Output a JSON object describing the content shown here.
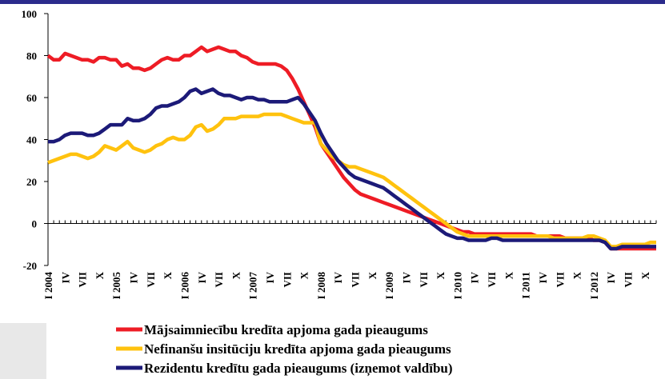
{
  "chart_data": {
    "type": "line",
    "categories": [
      "I 2004",
      null,
      null,
      "IV",
      null,
      null,
      "VII",
      null,
      null,
      "X",
      null,
      null,
      "I 2005",
      null,
      null,
      "IV",
      null,
      null,
      "VII",
      null,
      null,
      "X",
      null,
      null,
      "I 2006",
      null,
      null,
      "IV",
      null,
      null,
      "VII",
      null,
      null,
      "X",
      null,
      null,
      "I 2007",
      null,
      null,
      "IV",
      null,
      null,
      "VII",
      null,
      null,
      "X",
      null,
      null,
      "I 2008",
      null,
      null,
      "IV",
      null,
      null,
      "VII",
      null,
      null,
      "X",
      null,
      null,
      "I 2009",
      null,
      null,
      "IV",
      null,
      null,
      "VII",
      null,
      null,
      "X",
      null,
      null,
      "I 2010",
      null,
      null,
      "IV",
      null,
      null,
      "VII",
      null,
      null,
      "X",
      null,
      null,
      "I 2011",
      null,
      null,
      "IV",
      null,
      null,
      "VII",
      null,
      null,
      "X",
      null,
      null,
      "I 2012",
      null,
      null,
      "IV",
      null,
      null,
      "VII",
      null,
      null,
      "X",
      null,
      null
    ],
    "series": [
      {
        "name": "Mājsaimniecību kredīta apjoma gada pieaugums",
        "color": "#ee1c25",
        "values": [
          80,
          78,
          78,
          81,
          80,
          79,
          78,
          78,
          77,
          79,
          79,
          78,
          78,
          75,
          76,
          74,
          74,
          73,
          74,
          76,
          78,
          79,
          78,
          78,
          80,
          80,
          82,
          84,
          82,
          83,
          84,
          83,
          82,
          82,
          80,
          79,
          77,
          76,
          76,
          76,
          76,
          75,
          73,
          69,
          64,
          58,
          52,
          46,
          38,
          34,
          30,
          26,
          22,
          19,
          16,
          14,
          13,
          12,
          11,
          10,
          9,
          8,
          7,
          6,
          5,
          4,
          3,
          2,
          1,
          0,
          -1,
          -2,
          -3,
          -4,
          -4,
          -5,
          -5,
          -5,
          -5,
          -5,
          -5,
          -5,
          -5,
          -5,
          -5,
          -5,
          -6,
          -6,
          -6,
          -6,
          -6,
          -7,
          -7,
          -7,
          -7,
          -7,
          -8,
          -8,
          -9,
          -12,
          -12,
          -12,
          -12,
          -12,
          -12,
          -12,
          -12,
          -12
        ]
      },
      {
        "name": "Nefinanšu insitūciju kredīta apjoma gada pieaugums",
        "color": "#ffc20e",
        "values": [
          29,
          30,
          31,
          32,
          33,
          33,
          32,
          31,
          32,
          34,
          37,
          36,
          35,
          37,
          39,
          36,
          35,
          34,
          35,
          37,
          38,
          40,
          41,
          40,
          40,
          42,
          46,
          47,
          44,
          45,
          47,
          50,
          50,
          50,
          51,
          51,
          51,
          51,
          52,
          52,
          52,
          52,
          51,
          50,
          49,
          48,
          48,
          48,
          38,
          35,
          32,
          30,
          28,
          27,
          27,
          26,
          25,
          24,
          23,
          22,
          20,
          18,
          16,
          14,
          12,
          10,
          8,
          6,
          4,
          2,
          0,
          -2,
          -4,
          -5,
          -6,
          -6,
          -6,
          -6,
          -6,
          -6,
          -6,
          -6,
          -6,
          -6,
          -6,
          -6,
          -6,
          -6,
          -6,
          -7,
          -7,
          -7,
          -7,
          -7,
          -7,
          -6,
          -6,
          -7,
          -8,
          -11,
          -11,
          -10,
          -10,
          -10,
          -10,
          -10,
          -9,
          -9
        ]
      },
      {
        "name": "Rezidentu kredītu gada pieaugums (izņemot valdību)",
        "color": "#1c1a78",
        "values": [
          39,
          39,
          40,
          42,
          43,
          43,
          43,
          42,
          42,
          43,
          45,
          47,
          47,
          47,
          50,
          49,
          49,
          50,
          52,
          55,
          56,
          56,
          57,
          58,
          60,
          63,
          64,
          62,
          63,
          64,
          62,
          61,
          61,
          60,
          59,
          60,
          60,
          59,
          59,
          58,
          58,
          58,
          58,
          59,
          60,
          57,
          53,
          49,
          43,
          38,
          34,
          30,
          27,
          24,
          22,
          21,
          20,
          19,
          18,
          17,
          15,
          13,
          11,
          9,
          7,
          5,
          3,
          1,
          -1,
          -3,
          -5,
          -6,
          -7,
          -7,
          -8,
          -8,
          -8,
          -8,
          -7,
          -7,
          -8,
          -8,
          -8,
          -8,
          -8,
          -8,
          -8,
          -8,
          -8,
          -8,
          -8,
          -8,
          -8,
          -8,
          -8,
          -8,
          -8,
          -8,
          -9,
          -12,
          -12,
          -11,
          -11,
          -11,
          -11,
          -11,
          -11,
          -11
        ]
      }
    ],
    "ylim": [
      -20,
      100
    ],
    "yticks": [
      -20,
      0,
      20,
      40,
      60,
      80,
      100
    ]
  }
}
